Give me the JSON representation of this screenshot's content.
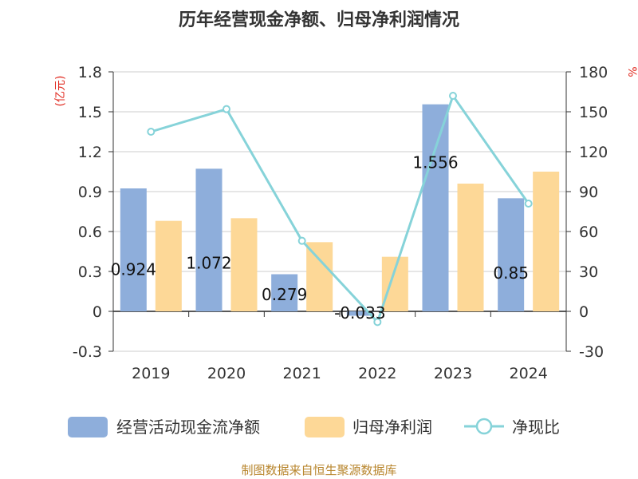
{
  "chart_data": {
    "type": "bar",
    "title": "历年经营现金净额、归母净利润情况",
    "categories": [
      "2019",
      "2020",
      "2021",
      "2022",
      "2023",
      "2024"
    ],
    "left_axis": {
      "unit_label": "(亿元)",
      "ylim": [
        -0.3,
        1.8
      ],
      "ticks": [
        "1.8",
        "1.5",
        "1.2",
        "0.9",
        "0.6",
        "0.3",
        "0",
        "-0.3"
      ]
    },
    "right_axis": {
      "unit_label": "%",
      "ylim": [
        -30,
        180
      ],
      "ticks": [
        "180",
        "150",
        "120",
        "90",
        "60",
        "30",
        "0",
        "-30"
      ]
    },
    "series": [
      {
        "name": "经营活动现金流净额",
        "type": "bar",
        "axis": "left",
        "color": "#8eaedb",
        "values": [
          0.924,
          1.072,
          0.279,
          -0.033,
          1.556,
          0.85
        ],
        "labels": [
          "0.924",
          "1.072",
          "0.279",
          "-0.033",
          "1.556",
          "0.85"
        ]
      },
      {
        "name": "归母净利润",
        "type": "bar",
        "axis": "left",
        "color": "#fdd897",
        "values": [
          0.68,
          0.7,
          0.52,
          0.41,
          0.96,
          1.05
        ]
      },
      {
        "name": "净现比",
        "type": "line",
        "axis": "right",
        "color": "#86d3d9",
        "values": [
          135,
          152,
          53,
          -8,
          162,
          81
        ]
      }
    ],
    "grid": true,
    "legend_position": "bottom"
  },
  "footer": {
    "source": "制图数据来自恒生聚源数据库"
  }
}
